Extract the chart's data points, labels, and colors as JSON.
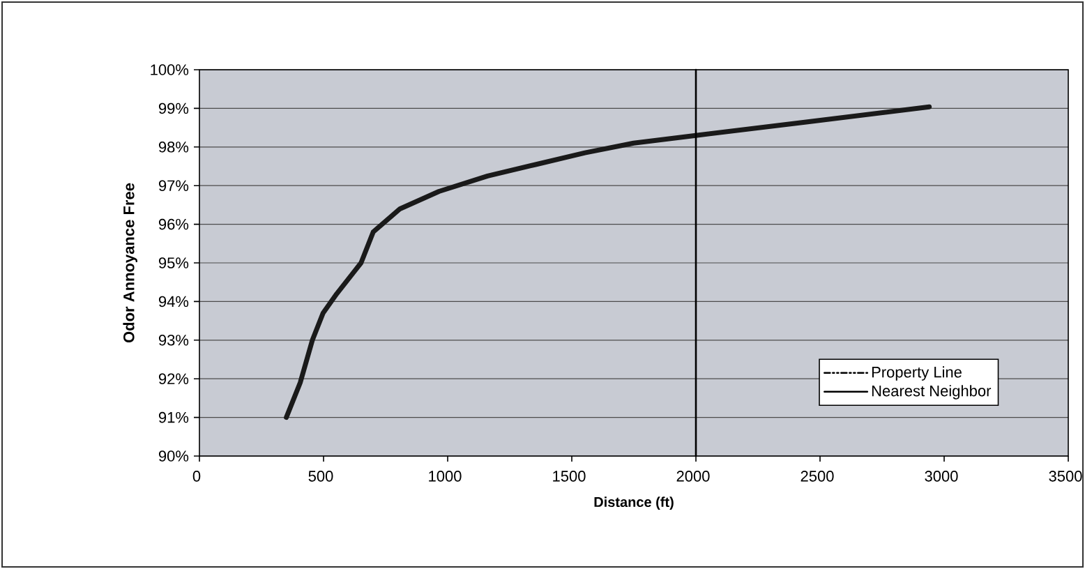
{
  "chart_data": {
    "type": "line",
    "xlabel": "Distance (ft)",
    "ylabel": "Odor Annoyance Free",
    "x": [
      350,
      406,
      455,
      498,
      553,
      651,
      700,
      808,
      965,
      1161,
      1357,
      1553,
      1749,
      2000,
      2450,
      2940
    ],
    "series": [
      {
        "color": "#1a1a1a",
        "values": [
          91.0,
          91.9,
          93.0,
          93.7,
          94.2,
          95.0,
          95.8,
          96.4,
          96.85,
          97.25,
          97.55,
          97.85,
          98.1,
          98.3,
          98.65,
          99.04
        ]
      },
      {
        "name": "Property Line",
        "color": "#000000",
        "line_style": "dashdot",
        "values": [
          null,
          null,
          null,
          null,
          null,
          null,
          null,
          null,
          null,
          null,
          null,
          null,
          null,
          null,
          null,
          null
        ]
      },
      {
        "name": "Nearest Neighbor",
        "color": "#000000",
        "line_style": "solid",
        "x": [
          2000,
          2000
        ],
        "values": [
          90,
          100
        ]
      }
    ],
    "xlim": [
      0,
      3500
    ],
    "xticks": [
      0,
      500,
      1000,
      1500,
      2000,
      2500,
      3000,
      3500
    ],
    "ylim": [
      90,
      100
    ],
    "yticks": [
      {
        "value": 90,
        "label": "90%"
      },
      {
        "value": 91,
        "label": "91%"
      },
      {
        "value": 92,
        "label": "92%"
      },
      {
        "value": 93,
        "label": "93%"
      },
      {
        "value": 94,
        "label": "94%"
      },
      {
        "value": 95,
        "label": "95%"
      },
      {
        "value": 96,
        "label": "96%"
      },
      {
        "value": 97,
        "label": "97%"
      },
      {
        "value": 98,
        "label": "98%"
      },
      {
        "value": 99,
        "label": "99%"
      },
      {
        "value": 100,
        "label": "100%"
      }
    ],
    "grid": "y",
    "legend": "bottom right",
    "marker": "none",
    "line_style": "solid"
  }
}
